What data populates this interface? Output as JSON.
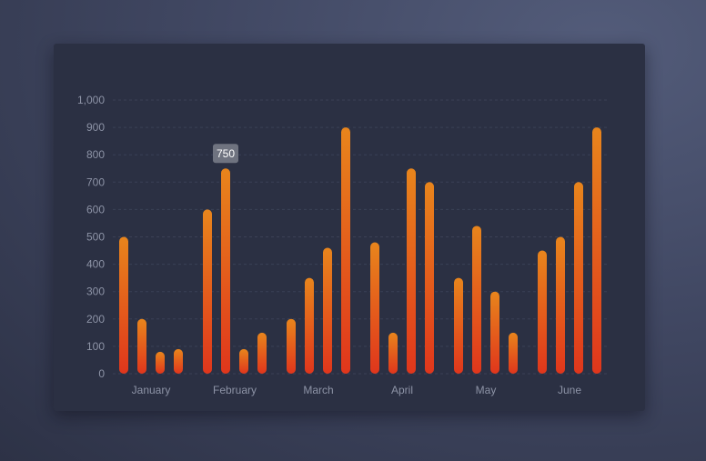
{
  "colors": {
    "bar_top": "#e8851c",
    "bar_bottom": "#e0361c",
    "grid": "#3b4156",
    "tooltip_bg": "#6f7380"
  },
  "chart_data": {
    "type": "bar",
    "categories": [
      "January",
      "February",
      "March",
      "April",
      "May",
      "June"
    ],
    "series": [
      {
        "values": [
          500,
          600,
          200,
          480,
          350,
          450
        ]
      },
      {
        "values": [
          200,
          750,
          350,
          150,
          540,
          500
        ]
      },
      {
        "values": [
          80,
          90,
          460,
          750,
          300,
          700
        ]
      },
      {
        "values": [
          90,
          150,
          900,
          700,
          150,
          900
        ]
      }
    ],
    "ylim": [
      0,
      1000
    ],
    "yticks": [
      "0",
      "100",
      "200",
      "300",
      "400",
      "500",
      "600",
      "700",
      "800",
      "900",
      "1,000"
    ],
    "grid": true,
    "tooltip": {
      "category": "February",
      "series_index": 1,
      "label": "750"
    }
  }
}
